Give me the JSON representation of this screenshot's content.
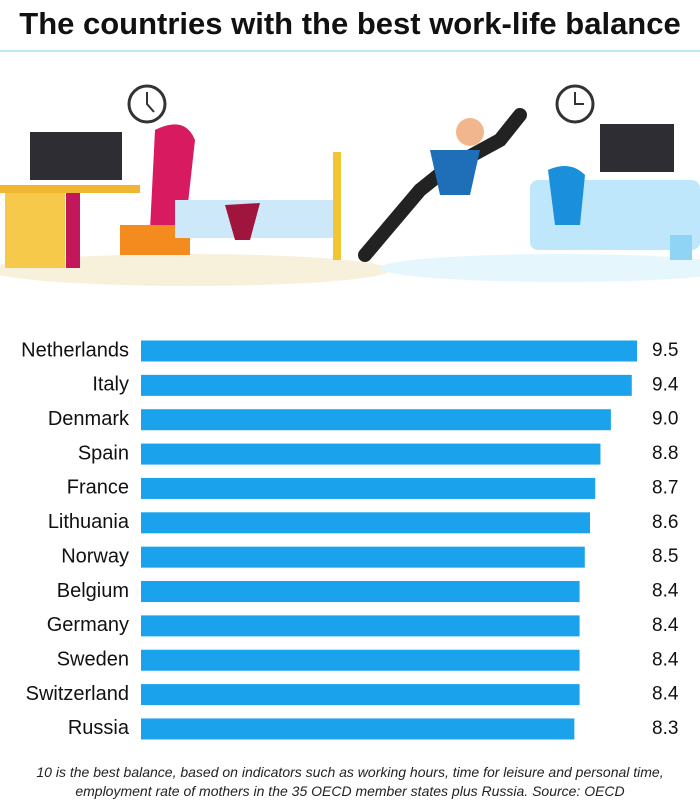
{
  "chart_data": {
    "type": "bar",
    "orientation": "horizontal",
    "title": "The countries with the best work-life balance",
    "categories": [
      "Netherlands",
      "Italy",
      "Denmark",
      "Spain",
      "France",
      "Lithuania",
      "Norway",
      "Belgium",
      "Germany",
      "Sweden",
      "Switzerland",
      "Russia"
    ],
    "values": [
      9.5,
      9.4,
      9.0,
      8.8,
      8.7,
      8.6,
      8.5,
      8.4,
      8.4,
      8.4,
      8.4,
      8.3
    ],
    "value_labels": [
      "9.5",
      "9.4",
      "9.0",
      "8.8",
      "8.7",
      "8.6",
      "8.5",
      "8.4",
      "8.4",
      "8.4",
      "8.4",
      "8.3"
    ],
    "color": "#1aa3ec",
    "note": "10 is the best balance, based on indicators such as working hours, time for leisure and personal time, employment rate of mothers in the 35 OECD member states plus Russia. Source: OECD"
  }
}
